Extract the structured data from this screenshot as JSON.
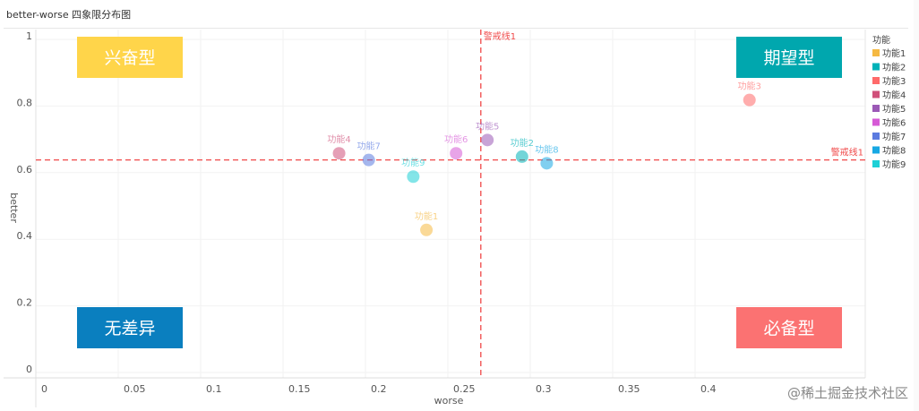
{
  "title": "better-worse 四象限分布图",
  "watermark": "@稀土掘金技术社区",
  "chart_data": {
    "type": "scatter",
    "title": "better-worse 四象限分布图",
    "xlabel": "worse",
    "ylabel": "better",
    "xlim": [
      0,
      0.45
    ],
    "ylim": [
      0,
      1
    ],
    "xticks": [
      0,
      0.05,
      0.1,
      0.15,
      0.2,
      0.25,
      0.3,
      0.35,
      0.4
    ],
    "yticks": [
      0,
      0.2,
      0.4,
      0.6,
      0.8,
      1
    ],
    "grid": true,
    "legend": {
      "title": "功能",
      "placement": "right"
    },
    "series": [
      {
        "name": "功能1",
        "x": 0.237,
        "y": 0.42,
        "color": "#f5b942"
      },
      {
        "name": "功能2",
        "x": 0.295,
        "y": 0.64,
        "color": "#00b2b8"
      },
      {
        "name": "功能3",
        "x": 0.433,
        "y": 0.81,
        "color": "#ff6a6a"
      },
      {
        "name": "功能4",
        "x": 0.184,
        "y": 0.65,
        "color": "#d0507a"
      },
      {
        "name": "功能5",
        "x": 0.274,
        "y": 0.69,
        "color": "#9b59b6"
      },
      {
        "name": "功能6",
        "x": 0.255,
        "y": 0.65,
        "color": "#d65ad6"
      },
      {
        "name": "功能7",
        "x": 0.202,
        "y": 0.63,
        "color": "#5b7be0"
      },
      {
        "name": "功能8",
        "x": 0.31,
        "y": 0.62,
        "color": "#17a8e3"
      },
      {
        "name": "功能9",
        "x": 0.229,
        "y": 0.58,
        "color": "#1dd0d6"
      }
    ],
    "reference_lines": [
      {
        "label": "警戒线1",
        "axis": "x",
        "value": 0.27,
        "color": "#f04848"
      },
      {
        "label": "警戒线1",
        "axis": "y",
        "value": 0.63,
        "color": "#f04848"
      }
    ],
    "quadrants": [
      {
        "label": "兴奋型",
        "position": "top-left",
        "color": "#ffd54a",
        "text_color": "#333333"
      },
      {
        "label": "期望型",
        "position": "top-right",
        "color": "#00a7ae",
        "text_color": "#ffffff"
      },
      {
        "label": "无差异",
        "position": "bottom-left",
        "color": "#0a7fbf",
        "text_color": "#ffffff"
      },
      {
        "label": "必备型",
        "position": "bottom-right",
        "color": "#fb7272",
        "text_color": "#ffffff"
      }
    ]
  }
}
